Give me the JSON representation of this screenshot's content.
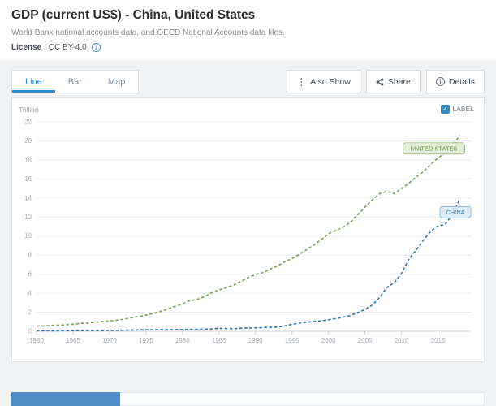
{
  "header": {
    "title": "GDP (current US$) - China, United States",
    "subtitle": "World Bank national accounts data, and OECD National Accounts data files.",
    "license_label": "License",
    "license_value": ": CC BY-4.0"
  },
  "tabs": [
    {
      "label": "Line"
    },
    {
      "label": "Bar"
    },
    {
      "label": "Map"
    }
  ],
  "toolbar": {
    "also_show": "Also Show",
    "share": "Share",
    "details": "Details"
  },
  "chart": {
    "unit_label": "Trillion",
    "label_checkbox_text": "LABEL",
    "accent_blue": "#2e8bc5"
  },
  "chart_data": {
    "type": "line",
    "title": "GDP (current US$) - China, United States",
    "unit": "Trillion US$",
    "ylim": [
      0,
      22
    ],
    "ytick_step": 2,
    "xticks": [
      1960,
      1965,
      1970,
      1975,
      1980,
      1985,
      1990,
      1995,
      2000,
      2005,
      2010,
      2015
    ],
    "grid": true,
    "line_style": "dashed",
    "legend_position": "end-of-line-pills",
    "x": [
      1960,
      1961,
      1962,
      1963,
      1964,
      1965,
      1966,
      1967,
      1968,
      1969,
      1970,
      1971,
      1972,
      1973,
      1974,
      1975,
      1976,
      1977,
      1978,
      1979,
      1980,
      1981,
      1982,
      1983,
      1984,
      1985,
      1986,
      1987,
      1988,
      1989,
      1990,
      1991,
      1992,
      1993,
      1994,
      1995,
      1996,
      1997,
      1998,
      1999,
      2000,
      2001,
      2002,
      2003,
      2004,
      2005,
      2006,
      2007,
      2008,
      2009,
      2010,
      2011,
      2012,
      2013,
      2014,
      2015,
      2016,
      2017,
      2018
    ],
    "series": [
      {
        "name": "United States",
        "pill_label": "UNITED STATES",
        "color": "#7aa55a",
        "pill_bg": "#e4efdb",
        "pill_border": "#a9c78f",
        "pill_text_color": "#648e43",
        "values": [
          0.543,
          0.563,
          0.605,
          0.639,
          0.686,
          0.744,
          0.815,
          0.862,
          0.943,
          1.02,
          1.073,
          1.165,
          1.279,
          1.425,
          1.545,
          1.685,
          1.873,
          2.082,
          2.352,
          2.627,
          2.857,
          3.207,
          3.344,
          3.634,
          4.038,
          4.339,
          4.58,
          4.855,
          5.236,
          5.642,
          5.963,
          6.158,
          6.52,
          6.859,
          7.287,
          7.64,
          8.073,
          8.578,
          9.063,
          9.631,
          10.252,
          10.582,
          10.936,
          11.458,
          12.214,
          13.037,
          13.815,
          14.452,
          14.713,
          14.449,
          14.992,
          15.543,
          16.197,
          16.785,
          17.527,
          18.225,
          18.715,
          19.519,
          20.58
        ]
      },
      {
        "name": "China",
        "pill_label": "CHINA",
        "color": "#2f79b7",
        "pill_bg": "#dcebf7",
        "pill_border": "#92bede",
        "pill_text_color": "#3a77ad",
        "values": [
          0.06,
          0.05,
          0.047,
          0.05,
          0.06,
          0.07,
          0.076,
          0.072,
          0.07,
          0.079,
          0.093,
          0.099,
          0.113,
          0.138,
          0.144,
          0.163,
          0.154,
          0.175,
          0.15,
          0.178,
          0.191,
          0.196,
          0.205,
          0.231,
          0.26,
          0.31,
          0.301,
          0.273,
          0.312,
          0.348,
          0.361,
          0.383,
          0.427,
          0.445,
          0.564,
          0.734,
          0.864,
          0.962,
          1.029,
          1.094,
          1.211,
          1.339,
          1.471,
          1.66,
          1.955,
          2.286,
          2.752,
          3.55,
          4.594,
          5.102,
          6.087,
          7.552,
          8.532,
          9.57,
          10.476,
          11.062,
          11.233,
          12.31,
          13.895
        ]
      }
    ]
  }
}
